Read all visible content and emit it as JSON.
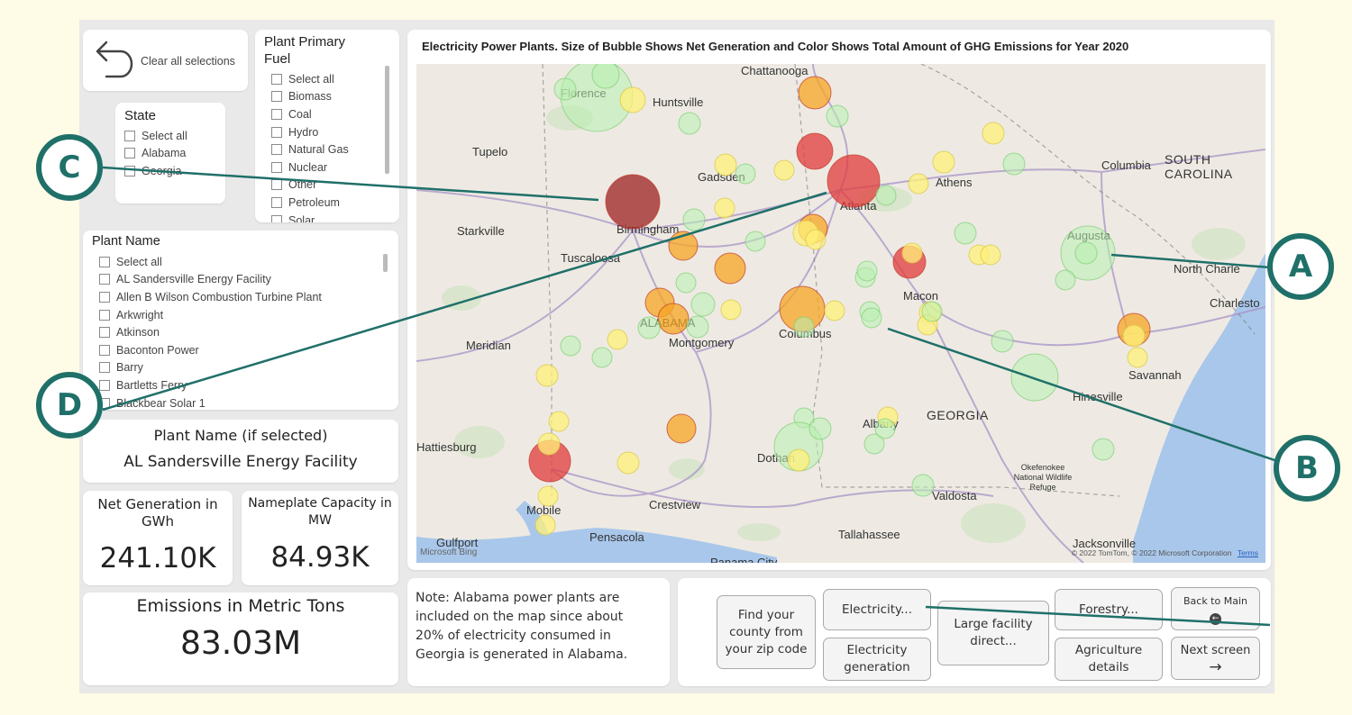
{
  "reset": {
    "label": "Clear all selections"
  },
  "state_slicer": {
    "title": "State",
    "options": [
      "Select all",
      "Alabama",
      "Georgia"
    ]
  },
  "fuel_slicer": {
    "title": "Plant Primary Fuel",
    "options": [
      "Select all",
      "Biomass",
      "Coal",
      "Hydro",
      "Natural Gas",
      "Nuclear",
      "Other",
      "Petroleum",
      "Solar"
    ]
  },
  "plant_slicer": {
    "title": "Plant Name",
    "options": [
      "Select all",
      "AL Sandersville Energy Facility",
      "Allen B Wilson Combustion Turbine Plant",
      "Arkwright",
      "Atkinson",
      "Baconton Power",
      "Barry",
      "Bartletts Ferry",
      "Blackbear Solar 1"
    ]
  },
  "selected_plant": {
    "label": "Plant Name (if selected)",
    "value": "AL Sandersville Energy Facility"
  },
  "kpis": {
    "net_generation": {
      "label": "Net Generation in GWh",
      "value": "241.10K"
    },
    "nameplate": {
      "label": "Nameplate Capacity in MW",
      "value": "84.93K"
    },
    "emissions": {
      "label": "Emissions in Metric Tons",
      "value": "83.03M"
    }
  },
  "map": {
    "title": "Electricity Power Plants. Size of Bubble Shows Net Generation and Color Shows Total Amount of GHG Emissions for Year 2020",
    "labels": {
      "chattanooga": "Chattanooga",
      "florence": "Florence",
      "huntsville": "Huntsville",
      "tupelo": "Tupelo",
      "gadsden": "Gadsden",
      "birmingham": "Birmingham",
      "atlanta": "Atlanta",
      "athens": "Athens",
      "columbia": "Columbia",
      "south_carolina": "SOUTH CAROLINA",
      "starkville": "Starkville",
      "tuscaloosa": "Tuscaloosa",
      "augusta": "Augusta",
      "north_charleston": "North Charle",
      "charleston": "Charlesto",
      "macon": "Macon",
      "alabama": "ALABAMA",
      "montgomery": "Montgomery",
      "columbus": "Columbus",
      "meridian": "Meridian",
      "savannah": "Savannah",
      "hinesville": "Hinesville",
      "georgia": "GEORGIA",
      "albany": "Albany",
      "hattiesburg": "Hattiesburg",
      "dothan": "Dothan",
      "crestview": "Crestview",
      "valdosta": "Valdosta",
      "okefenokee": "Okefenokee National Wildlife Refuge",
      "tallahassee": "Tallahassee",
      "mobile": "Mobile",
      "pensacola": "Pensacola",
      "gulfport": "Gulfport",
      "jacksonville": "Jacksonville",
      "panama_city": "Panama City"
    },
    "attribution": "© 2022 TomTom, © 2022 Microsoft Corporation",
    "terms": "Terms",
    "brand": "Microsoft Bing"
  },
  "note": {
    "text": "Note: Alabama power plants are included on the map since about 20% of electricity consumed in Georgia is generated in Alabama."
  },
  "nav": {
    "zip": "Find your county from your zip code",
    "electricity": "Electricity...",
    "electricity_generation": "Electricity generation",
    "large_facility": "Large facility direct...",
    "forestry": "Forestry...",
    "agriculture": "Agriculture details",
    "back_main": "Back to Main",
    "next_screen": "Next screen"
  },
  "callouts": {
    "a": "A",
    "b": "B",
    "c": "C",
    "d": "D"
  },
  "colors": {
    "callout": "#1f7069",
    "background": "#fefbe6",
    "high_emission": "#e23b3b",
    "mid_emission": "#f5a623",
    "low_emission": "#fff07a",
    "zero_emission": "#b8f0b0"
  }
}
